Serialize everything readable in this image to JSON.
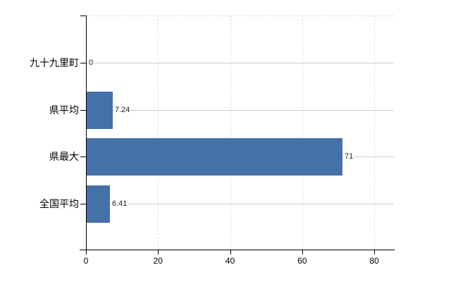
{
  "chart_data": {
    "type": "bar",
    "orientation": "horizontal",
    "title": "",
    "xlabel": "",
    "ylabel": "",
    "categories": [
      "九十九里町",
      "県平均",
      "県最大",
      "全国平均"
    ],
    "values": [
      0,
      7.24,
      71,
      6.41
    ],
    "value_labels": [
      "0",
      "7.24",
      "71",
      "6.41"
    ],
    "xticks": [
      0,
      20,
      40,
      60,
      80
    ],
    "xtick_labels": [
      "0",
      "20",
      "40",
      "60",
      "80"
    ],
    "xlim": [
      0,
      85.4
    ],
    "grid": true,
    "legend": false
  },
  "colors": {
    "bar": "#4471a8",
    "axis": "#000000",
    "grid_dashed": "#dddddd",
    "grid_row": "#cccccc",
    "value_label": "#222222",
    "category_label": "#000000"
  }
}
